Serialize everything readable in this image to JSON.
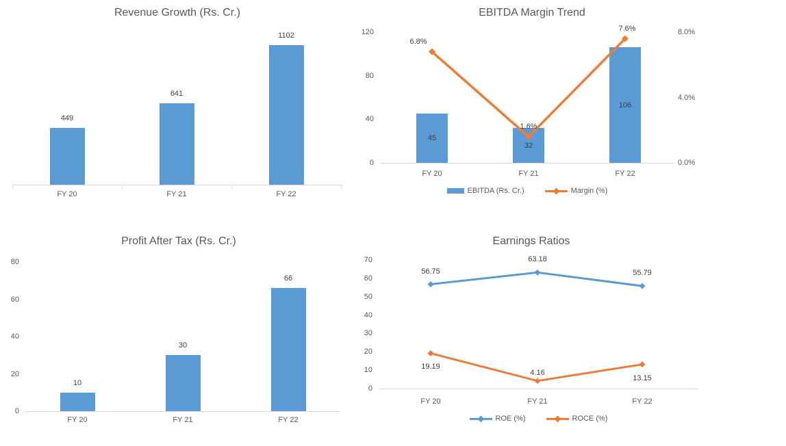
{
  "colors": {
    "blue": "#5B9BD5",
    "orange": "#ED7D31",
    "axis_line": "#D9D9D9",
    "tick_text": "#595959",
    "value_text": "#404040"
  },
  "chart_data": [
    {
      "id": "revenue",
      "type": "bar",
      "title": "Revenue Growth (Rs. Cr.)",
      "categories": [
        "FY 20",
        "FY 21",
        "FY 22"
      ],
      "values": [
        449,
        641,
        1102
      ],
      "value_labels": [
        "449",
        "641",
        "1102"
      ],
      "ylim": [
        0,
        1200
      ],
      "y_axis": "hidden",
      "grid": false,
      "legend": "none"
    },
    {
      "id": "ebitda",
      "type": "combo-bar-line",
      "title": "EBITDA Margin Trend",
      "categories": [
        "FY 20",
        "FY 21",
        "FY 22"
      ],
      "series": [
        {
          "name": "EBITDA (Rs. Cr.)",
          "type": "bar",
          "axis": "left",
          "color": "blue",
          "values": [
            45,
            32,
            106
          ],
          "value_labels": [
            "45",
            "32",
            "106"
          ],
          "label_position": "inside-center"
        },
        {
          "name": "Margin (%)",
          "type": "line",
          "axis": "right",
          "color": "orange",
          "marker": "diamond",
          "values": [
            6.8,
            1.6,
            7.6
          ],
          "value_labels": [
            "6.8%",
            "1.6%",
            "7.6%"
          ],
          "label_position": "above"
        }
      ],
      "left_axis": {
        "lim": [
          0,
          120
        ],
        "ticks": [
          "0",
          "40",
          "80",
          "120"
        ],
        "tick_values": [
          0,
          40,
          80,
          120
        ]
      },
      "right_axis": {
        "lim": [
          0,
          8
        ],
        "ticks": [
          "0.0%",
          "4.0%",
          "8.0%"
        ],
        "tick_values": [
          0,
          4,
          8
        ]
      },
      "grid": false,
      "legend": "bottom"
    },
    {
      "id": "pat",
      "type": "bar",
      "title": "Profit After Tax (Rs. Cr.)",
      "categories": [
        "FY 20",
        "FY 21",
        "FY 22"
      ],
      "values": [
        10,
        30,
        66
      ],
      "value_labels": [
        "10",
        "30",
        "66"
      ],
      "ylim": [
        0,
        80
      ],
      "y_ticks": [
        "0",
        "20",
        "40",
        "60",
        "80"
      ],
      "y_tick_values": [
        0,
        20,
        40,
        60,
        80
      ],
      "grid": false,
      "legend": "none"
    },
    {
      "id": "ratios",
      "type": "line",
      "title": "Earnings Ratios",
      "categories": [
        "FY 20",
        "FY 21",
        "FY 22"
      ],
      "series": [
        {
          "name": "ROE (%)",
          "color": "blue",
          "marker": "diamond",
          "values": [
            56.75,
            63.18,
            55.79
          ],
          "value_labels": [
            "56.75",
            "63.18",
            "55.79"
          ],
          "label_placement": [
            "above",
            "above",
            "above"
          ]
        },
        {
          "name": "ROCE (%)",
          "color": "orange",
          "marker": "diamond",
          "values": [
            19.19,
            4.16,
            13.15
          ],
          "value_labels": [
            "19.19",
            "4.16",
            "13.15"
          ],
          "label_placement": [
            "below",
            "above-leader",
            "below"
          ]
        }
      ],
      "ylim": [
        0,
        70
      ],
      "y_ticks": [
        "0",
        "10",
        "20",
        "30",
        "40",
        "50",
        "60",
        "70"
      ],
      "y_tick_values": [
        0,
        10,
        20,
        30,
        40,
        50,
        60,
        70
      ],
      "grid": false,
      "legend": "bottom"
    }
  ]
}
